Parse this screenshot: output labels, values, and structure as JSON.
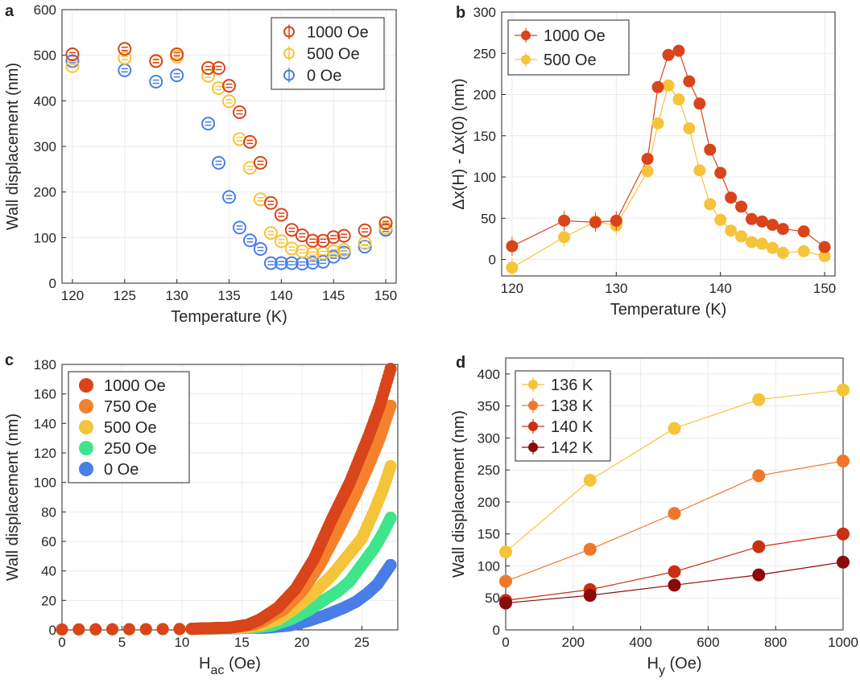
{
  "colors": {
    "c1000": "#d9441a",
    "c750": "#f5812c",
    "c500": "#f5c43a",
    "c250": "#3ee58a",
    "c0": "#4a7de8",
    "k136": "#f5c43a",
    "k138": "#f0772a",
    "k140": "#c9300f",
    "k142": "#8b0a0a",
    "grid": "#ebebeb",
    "axis": "#262626"
  },
  "chart_data": [
    {
      "panel": "a",
      "type": "scatter",
      "xlabel": "Temperature (K)",
      "ylabel": "Wall displacement (nm)",
      "xlim": [
        119,
        151
      ],
      "ylim": [
        0,
        600
      ],
      "xticks": [
        120,
        125,
        130,
        135,
        140,
        145,
        150
      ],
      "yticks": [
        0,
        100,
        200,
        300,
        400,
        500,
        600
      ],
      "grid": true,
      "legend": "top-right",
      "marker": "open-circle-errorbar",
      "series": [
        {
          "name": "1000 Oe",
          "color": "#d9441a",
          "x": [
            120,
            125,
            128,
            130,
            133,
            134,
            135,
            136,
            137,
            138,
            139,
            140,
            141,
            142,
            143,
            144,
            145,
            146,
            148,
            150
          ],
          "y": [
            502,
            514,
            487,
            502,
            472,
            472,
            433,
            375,
            310,
            264,
            176,
            150,
            117,
            105,
            93,
            93,
            101,
            104,
            116,
            132
          ]
        },
        {
          "name": "500 Oe",
          "color": "#f5c43a",
          "x": [
            120,
            125,
            128,
            130,
            133,
            134,
            135,
            136,
            137,
            138,
            139,
            140,
            141,
            142,
            143,
            144,
            145,
            146,
            148,
            150
          ],
          "y": [
            476,
            494,
            488,
            497,
            455,
            428,
            399,
            316,
            253,
            184,
            110,
            92,
            76,
            70,
            65,
            66,
            70,
            73,
            88,
            121
          ]
        },
        {
          "name": "0 Oe",
          "color": "#4a7de8",
          "x": [
            120,
            125,
            128,
            130,
            133,
            134,
            135,
            136,
            137,
            138,
            139,
            140,
            141,
            142,
            143,
            144,
            145,
            146,
            148,
            150
          ],
          "y": [
            487,
            467,
            442,
            456,
            350,
            264,
            189,
            122,
            94,
            75,
            44,
            44,
            44,
            43,
            45,
            47,
            58,
            67,
            80,
            117
          ]
        }
      ]
    },
    {
      "panel": "b",
      "type": "line",
      "xlabel": "Temperature (K)",
      "ylabel": "Δx(H) - Δx(0) (nm)",
      "xlim": [
        119,
        151
      ],
      "ylim": [
        -20,
        300
      ],
      "xticks": [
        120,
        130,
        140,
        150
      ],
      "yticks": [
        0,
        50,
        100,
        150,
        200,
        250,
        300
      ],
      "grid": true,
      "legend": "top-left",
      "marker": "filled-circle",
      "series": [
        {
          "name": "1000 Oe",
          "color": "#d9441a",
          "x": [
            120,
            125,
            128,
            130,
            133,
            134,
            135,
            136,
            137,
            138,
            139,
            140,
            141,
            142,
            143,
            144,
            145,
            146,
            148,
            150
          ],
          "y": [
            16,
            47,
            45,
            47,
            122,
            209,
            248,
            253,
            216,
            189,
            133,
            105,
            75,
            64,
            49,
            46,
            42,
            37,
            34,
            15
          ]
        },
        {
          "name": "500 Oe",
          "color": "#f5c43a",
          "x": [
            120,
            125,
            128,
            130,
            133,
            134,
            135,
            136,
            137,
            138,
            139,
            140,
            141,
            142,
            143,
            144,
            145,
            146,
            148,
            150
          ],
          "y": [
            -10,
            27,
            46,
            41,
            107,
            165,
            211,
            194,
            159,
            108,
            67,
            48,
            35,
            28,
            21,
            19,
            14,
            8,
            10,
            4
          ]
        }
      ]
    },
    {
      "panel": "c",
      "type": "scatter",
      "xlabel_main": "H",
      "xlabel_sub": "ac",
      "xlabel_unit": " (Oe)",
      "ylabel": "Wall displacement (nm)",
      "xlim": [
        0,
        28
      ],
      "ylim": [
        0,
        180
      ],
      "xticks": [
        0,
        5,
        10,
        15,
        20,
        25
      ],
      "yticks": [
        0,
        20,
        40,
        60,
        80,
        100,
        120,
        140,
        160,
        180
      ],
      "grid": true,
      "legend": "top-left",
      "marker": "filled-circle",
      "series": [
        {
          "name": "1000 Oe",
          "color": "#d9441a",
          "curve": [
            [
              0,
              0.3
            ],
            [
              10,
              0.6
            ],
            [
              14,
              1.5
            ],
            [
              15.5,
              3.5
            ],
            [
              16.5,
              7
            ],
            [
              18,
              15
            ],
            [
              19.5,
              28
            ],
            [
              21,
              48
            ],
            [
              22.5,
              75
            ],
            [
              24,
              100
            ],
            [
              25.5,
              130
            ],
            [
              26.5,
              152
            ],
            [
              27.4,
              177
            ]
          ]
        },
        {
          "name": "750 Oe",
          "color": "#f5812c",
          "curve": [
            [
              0,
              0.3
            ],
            [
              10,
              0.6
            ],
            [
              14,
              1.5
            ],
            [
              16,
              3.5
            ],
            [
              17,
              7
            ],
            [
              18.5,
              14
            ],
            [
              20,
              26
            ],
            [
              21.5,
              44
            ],
            [
              23,
              67
            ],
            [
              24.5,
              92
            ],
            [
              25.5,
              110
            ],
            [
              26.5,
              130
            ],
            [
              27.4,
              152
            ]
          ]
        },
        {
          "name": "500 Oe",
          "color": "#f5c43a",
          "curve": [
            [
              0,
              0.3
            ],
            [
              10,
              0.6
            ],
            [
              15,
              1.5
            ],
            [
              16.5,
              3
            ],
            [
              18,
              7
            ],
            [
              19.5,
              15
            ],
            [
              21,
              25
            ],
            [
              22.5,
              37
            ],
            [
              24,
              52
            ],
            [
              25,
              62
            ],
            [
              26,
              80
            ],
            [
              26.8,
              96
            ],
            [
              27.4,
              111
            ]
          ]
        },
        {
          "name": "250 Oe",
          "color": "#3ee58a",
          "curve": [
            [
              0,
              0.3
            ],
            [
              10,
              0.6
            ],
            [
              16,
              1.5
            ],
            [
              17.5,
              3
            ],
            [
              19,
              7
            ],
            [
              20.5,
              13
            ],
            [
              22,
              21
            ],
            [
              23,
              26
            ],
            [
              24,
              33
            ],
            [
              25,
              44
            ],
            [
              26,
              55
            ],
            [
              26.8,
              66
            ],
            [
              27.4,
              76
            ]
          ]
        },
        {
          "name": "0 Oe",
          "color": "#4a7de8",
          "curve": [
            [
              0,
              0.3
            ],
            [
              10,
              0.6
            ],
            [
              17,
              1.5
            ],
            [
              19,
              3
            ],
            [
              20.5,
              6
            ],
            [
              22,
              10
            ],
            [
              23.5,
              15
            ],
            [
              24.5,
              19
            ],
            [
              25.5,
              25
            ],
            [
              26.3,
              31
            ],
            [
              26.9,
              38
            ],
            [
              27.4,
              44
            ]
          ]
        }
      ]
    },
    {
      "panel": "d",
      "type": "line",
      "xlabel_main": "H",
      "xlabel_sub": "y",
      "xlabel_unit": " (Oe)",
      "ylabel": "Wall displacement (nm)",
      "xlim": [
        0,
        1000
      ],
      "ylim": [
        0,
        425
      ],
      "xticks": [
        0,
        200,
        400,
        600,
        800,
        1000
      ],
      "yticks": [
        0,
        50,
        100,
        150,
        200,
        250,
        300,
        350,
        400
      ],
      "grid": true,
      "legend": "top-left",
      "marker": "filled-circle",
      "series": [
        {
          "name": "136 K",
          "color": "#f5c43a",
          "x": [
            0,
            250,
            500,
            750,
            1000
          ],
          "y": [
            122,
            234,
            315,
            360,
            375
          ]
        },
        {
          "name": "138 K",
          "color": "#f0772a",
          "x": [
            0,
            250,
            500,
            750,
            1000
          ],
          "y": [
            76,
            126,
            182,
            241,
            264
          ]
        },
        {
          "name": "140 K",
          "color": "#c9300f",
          "x": [
            0,
            250,
            500,
            750,
            1000
          ],
          "y": [
            46,
            63,
            91,
            130,
            150
          ]
        },
        {
          "name": "142 K",
          "color": "#8b0a0a",
          "x": [
            0,
            250,
            500,
            750,
            1000
          ],
          "y": [
            42,
            54,
            70,
            86,
            106
          ]
        }
      ]
    }
  ]
}
